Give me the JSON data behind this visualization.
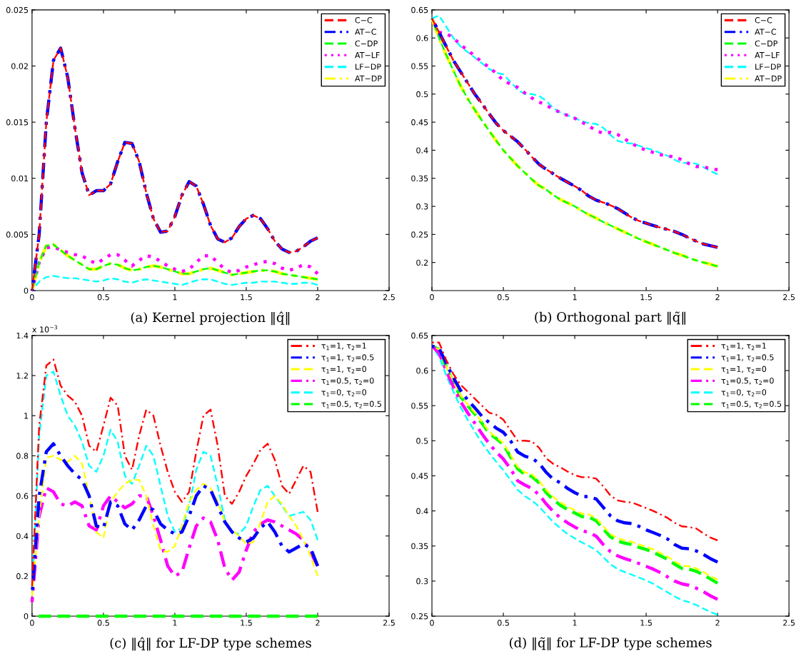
{
  "chart_data": [
    {
      "type": "line",
      "xlabel": "(a) Kernel projection ‖q̂‖",
      "xlim": [
        0,
        2.5
      ],
      "xticks": [
        0,
        0.5,
        1,
        1.5,
        2,
        2.5
      ],
      "ylim": [
        0,
        0.025
      ],
      "yticks": [
        0,
        0.005,
        0.01,
        0.015,
        0.02,
        0.025
      ],
      "legend": "top right",
      "grid": false,
      "x": [
        0,
        0.05,
        0.1,
        0.15,
        0.2,
        0.25,
        0.3,
        0.35,
        0.4,
        0.45,
        0.5,
        0.55,
        0.6,
        0.65,
        0.7,
        0.75,
        0.8,
        0.85,
        0.9,
        0.95,
        1.0,
        1.05,
        1.1,
        1.15,
        1.2,
        1.25,
        1.3,
        1.35,
        1.4,
        1.45,
        1.5,
        1.55,
        1.6,
        1.65,
        1.7,
        1.75,
        1.8,
        1.85,
        1.9,
        1.95,
        2.0
      ],
      "series": [
        {
          "name": "C−C",
          "color": "#ff0000",
          "line_style": "dashed",
          "values": [
            0,
            0.005,
            0.015,
            0.0205,
            0.0216,
            0.019,
            0.0145,
            0.0105,
            0.0085,
            0.0089,
            0.0089,
            0.0095,
            0.0115,
            0.0132,
            0.0131,
            0.0115,
            0.0087,
            0.0064,
            0.0052,
            0.0053,
            0.0066,
            0.0085,
            0.0097,
            0.0093,
            0.0077,
            0.0058,
            0.0046,
            0.0043,
            0.0047,
            0.0057,
            0.0064,
            0.0067,
            0.0064,
            0.0055,
            0.0044,
            0.0037,
            0.0034,
            0.0035,
            0.0039,
            0.0044,
            0.0047
          ]
        },
        {
          "name": "AT−C",
          "color": "#0000ff",
          "line_style": "dashdot",
          "values": [
            0,
            0.005,
            0.015,
            0.0205,
            0.0216,
            0.019,
            0.0145,
            0.0105,
            0.0085,
            0.0089,
            0.0089,
            0.0095,
            0.0115,
            0.0132,
            0.0131,
            0.0115,
            0.0087,
            0.0064,
            0.0052,
            0.0053,
            0.0066,
            0.0085,
            0.0097,
            0.0093,
            0.0077,
            0.0058,
            0.0046,
            0.0043,
            0.0047,
            0.0057,
            0.0064,
            0.0067,
            0.0064,
            0.0055,
            0.0044,
            0.0037,
            0.0034,
            0.0035,
            0.0039,
            0.0044,
            0.0047
          ]
        },
        {
          "name": "C−DP",
          "color": "#00ff00",
          "line_style": "dashed",
          "values": [
            0,
            0.0025,
            0.004,
            0.0041,
            0.0036,
            0.0031,
            0.0027,
            0.0023,
            0.0019,
            0.0019,
            0.0022,
            0.0024,
            0.0023,
            0.002,
            0.0018,
            0.0019,
            0.0021,
            0.0022,
            0.0021,
            0.0019,
            0.0017,
            0.0015,
            0.0015,
            0.0017,
            0.0019,
            0.002,
            0.0018,
            0.0016,
            0.0014,
            0.0015,
            0.0016,
            0.0017,
            0.0018,
            0.0018,
            0.0017,
            0.0015,
            0.0014,
            0.0013,
            0.0012,
            0.0011,
            0.001
          ]
        },
        {
          "name": "AT−LF",
          "color": "#ff00ff",
          "line_style": "dotted",
          "values": [
            0,
            0.0025,
            0.0038,
            0.0039,
            0.0036,
            0.0034,
            0.0032,
            0.0031,
            0.0027,
            0.0024,
            0.0028,
            0.0032,
            0.0032,
            0.0027,
            0.0022,
            0.0027,
            0.0031,
            0.003,
            0.0026,
            0.0022,
            0.0019,
            0.0017,
            0.0019,
            0.0025,
            0.0031,
            0.0031,
            0.0025,
            0.0019,
            0.0016,
            0.0018,
            0.0021,
            0.0023,
            0.0025,
            0.0026,
            0.0024,
            0.002,
            0.0018,
            0.002,
            0.0023,
            0.0021,
            0.0015
          ]
        },
        {
          "name": "LF−DP",
          "color": "#00ffff",
          "line_style": "dashed",
          "values": [
            0,
            0.0008,
            0.0012,
            0.0013,
            0.0012,
            0.0011,
            0.0011,
            0.001,
            0.0009,
            0.0008,
            0.0009,
            0.0011,
            0.001,
            0.0008,
            0.0007,
            0.0009,
            0.001,
            0.0009,
            0.0008,
            0.0007,
            0.0006,
            0.0005,
            0.0007,
            0.0009,
            0.001,
            0.001,
            0.0008,
            0.0006,
            0.0005,
            0.0006,
            0.0007,
            0.0007,
            0.0008,
            0.0008,
            0.0008,
            0.0007,
            0.0006,
            0.0006,
            0.0007,
            0.0007,
            0.0005
          ]
        },
        {
          "name": "AT−DP",
          "color": "#ffff00",
          "line_style": "dashdot",
          "values": [
            0,
            0.0025,
            0.004,
            0.0041,
            0.0036,
            0.0031,
            0.0027,
            0.0023,
            0.0019,
            0.0019,
            0.0022,
            0.0024,
            0.0023,
            0.002,
            0.0018,
            0.0019,
            0.0021,
            0.0022,
            0.0021,
            0.0019,
            0.0017,
            0.0015,
            0.0015,
            0.0017,
            0.0019,
            0.002,
            0.0018,
            0.0016,
            0.0014,
            0.0015,
            0.0016,
            0.0017,
            0.0018,
            0.0018,
            0.0017,
            0.0015,
            0.0014,
            0.0013,
            0.0012,
            0.0011,
            0.001
          ]
        }
      ]
    },
    {
      "type": "line",
      "xlabel": "(b) Orthogonal part ‖q̃‖",
      "xlim": [
        0,
        2.5
      ],
      "xticks": [
        0,
        0.5,
        1,
        1.5,
        2,
        2.5
      ],
      "ylim": [
        0.15,
        0.65
      ],
      "yticks": [
        0.2,
        0.25,
        0.3,
        0.35,
        0.4,
        0.45,
        0.5,
        0.55,
        0.6,
        0.65
      ],
      "legend": "top right",
      "grid": false,
      "x": [
        0,
        0.05,
        0.1,
        0.15,
        0.2,
        0.25,
        0.3,
        0.35,
        0.4,
        0.45,
        0.5,
        0.55,
        0.6,
        0.65,
        0.7,
        0.75,
        0.8,
        0.85,
        0.9,
        0.95,
        1.0,
        1.05,
        1.1,
        1.15,
        1.2,
        1.25,
        1.3,
        1.35,
        1.4,
        1.45,
        1.5,
        1.55,
        1.6,
        1.65,
        1.7,
        1.75,
        1.8,
        1.85,
        1.9,
        1.95,
        2.0
      ],
      "series": [
        {
          "name": "C−C",
          "color": "#ff0000",
          "line_style": "dashed",
          "values": [
            0.635,
            0.61,
            0.585,
            0.56,
            0.54,
            0.52,
            0.5,
            0.483,
            0.465,
            0.448,
            0.435,
            0.425,
            0.415,
            0.402,
            0.388,
            0.375,
            0.366,
            0.358,
            0.35,
            0.343,
            0.336,
            0.328,
            0.318,
            0.311,
            0.307,
            0.302,
            0.296,
            0.288,
            0.28,
            0.274,
            0.27,
            0.266,
            0.262,
            0.259,
            0.255,
            0.25,
            0.244,
            0.238,
            0.233,
            0.23,
            0.227
          ]
        },
        {
          "name": "AT−C",
          "color": "#0000ff",
          "line_style": "dashdot",
          "values": [
            0.635,
            0.61,
            0.585,
            0.56,
            0.54,
            0.52,
            0.5,
            0.483,
            0.465,
            0.448,
            0.435,
            0.425,
            0.415,
            0.402,
            0.388,
            0.375,
            0.366,
            0.358,
            0.35,
            0.343,
            0.336,
            0.328,
            0.318,
            0.311,
            0.307,
            0.302,
            0.296,
            0.288,
            0.28,
            0.274,
            0.27,
            0.266,
            0.262,
            0.259,
            0.255,
            0.25,
            0.244,
            0.238,
            0.233,
            0.23,
            0.227
          ]
        },
        {
          "name": "C−DP",
          "color": "#00ff00",
          "line_style": "dashed",
          "values": [
            0.635,
            0.6,
            0.57,
            0.542,
            0.515,
            0.492,
            0.472,
            0.453,
            0.435,
            0.417,
            0.4,
            0.386,
            0.372,
            0.36,
            0.348,
            0.337,
            0.33,
            0.32,
            0.312,
            0.306,
            0.3,
            0.292,
            0.285,
            0.279,
            0.272,
            0.266,
            0.26,
            0.254,
            0.248,
            0.242,
            0.237,
            0.232,
            0.227,
            0.222,
            0.217,
            0.213,
            0.208,
            0.204,
            0.2,
            0.197,
            0.193
          ]
        },
        {
          "name": "AT−LF",
          "color": "#ff00ff",
          "line_style": "dotted",
          "values": [
            0.635,
            0.61,
            0.608,
            0.6,
            0.588,
            0.578,
            0.568,
            0.557,
            0.548,
            0.537,
            0.524,
            0.518,
            0.512,
            0.502,
            0.493,
            0.486,
            0.48,
            0.473,
            0.467,
            0.462,
            0.457,
            0.45,
            0.443,
            0.435,
            0.43,
            0.432,
            0.428,
            0.42,
            0.412,
            0.405,
            0.4,
            0.396,
            0.392,
            0.39,
            0.388,
            0.383,
            0.376,
            0.371,
            0.37,
            0.368,
            0.365
          ]
        },
        {
          "name": "LF−DP",
          "color": "#00ffff",
          "line_style": "dashed",
          "values": [
            0.635,
            0.64,
            0.62,
            0.6,
            0.585,
            0.575,
            0.565,
            0.555,
            0.545,
            0.538,
            0.535,
            0.522,
            0.508,
            0.5,
            0.5,
            0.497,
            0.488,
            0.475,
            0.467,
            0.462,
            0.457,
            0.452,
            0.448,
            0.447,
            0.44,
            0.427,
            0.417,
            0.413,
            0.412,
            0.408,
            0.404,
            0.4,
            0.395,
            0.39,
            0.383,
            0.377,
            0.378,
            0.376,
            0.37,
            0.363,
            0.357
          ]
        },
        {
          "name": "AT−DP",
          "color": "#ffff00",
          "line_style": "dashdot",
          "values": [
            0.635,
            0.6,
            0.57,
            0.542,
            0.515,
            0.492,
            0.472,
            0.453,
            0.435,
            0.417,
            0.4,
            0.386,
            0.372,
            0.36,
            0.348,
            0.337,
            0.33,
            0.32,
            0.312,
            0.306,
            0.3,
            0.292,
            0.285,
            0.279,
            0.272,
            0.266,
            0.26,
            0.254,
            0.248,
            0.242,
            0.237,
            0.232,
            0.227,
            0.222,
            0.217,
            0.213,
            0.208,
            0.204,
            0.2,
            0.197,
            0.193
          ]
        }
      ]
    },
    {
      "type": "line",
      "xlabel": "(c) ‖q̂‖ for LF-DP type schemes",
      "annotations": [
        "x 10$^{−3}$"
      ],
      "xlim": [
        0,
        2.5
      ],
      "xticks": [
        0,
        0.5,
        1,
        1.5,
        2,
        2.5
      ],
      "ylim": [
        0,
        1.4
      ],
      "yticks": [
        0,
        0.2,
        0.4,
        0.6,
        0.8,
        1,
        1.2,
        1.4
      ],
      "legend": "top right",
      "grid": false,
      "x": [
        0,
        0.05,
        0.1,
        0.15,
        0.2,
        0.25,
        0.3,
        0.35,
        0.4,
        0.45,
        0.5,
        0.55,
        0.6,
        0.65,
        0.7,
        0.75,
        0.8,
        0.85,
        0.9,
        0.95,
        1.0,
        1.05,
        1.1,
        1.15,
        1.2,
        1.25,
        1.3,
        1.35,
        1.4,
        1.45,
        1.5,
        1.55,
        1.6,
        1.65,
        1.7,
        1.75,
        1.8,
        1.85,
        1.9,
        1.95,
        2.0
      ],
      "series": [
        {
          "name": "τ$_{1}$=1, τ$_{2}$=1",
          "color": "#ff0000",
          "line_style": "dashdot",
          "values": [
            0.15,
            0.95,
            1.25,
            1.28,
            1.15,
            1.1,
            1.07,
            1.0,
            0.85,
            0.82,
            0.95,
            1.09,
            1.05,
            0.8,
            0.73,
            0.9,
            1.03,
            1.0,
            0.85,
            0.72,
            0.62,
            0.57,
            0.62,
            0.82,
            1.0,
            1.03,
            0.85,
            0.6,
            0.56,
            0.62,
            0.7,
            0.76,
            0.83,
            0.86,
            0.78,
            0.65,
            0.61,
            0.68,
            0.75,
            0.72,
            0.52
          ]
        },
        {
          "name": "τ$_{1}$=1, τ$_{2}$=0.5",
          "color": "#0000ff",
          "line_style": "dashdot",
          "values": [
            0.1,
            0.6,
            0.82,
            0.86,
            0.8,
            0.75,
            0.71,
            0.68,
            0.6,
            0.45,
            0.44,
            0.57,
            0.55,
            0.46,
            0.43,
            0.48,
            0.55,
            0.53,
            0.46,
            0.43,
            0.41,
            0.42,
            0.5,
            0.6,
            0.65,
            0.63,
            0.55,
            0.47,
            0.42,
            0.39,
            0.37,
            0.39,
            0.44,
            0.47,
            0.42,
            0.35,
            0.32,
            0.34,
            0.36,
            0.34,
            0.25
          ]
        },
        {
          "name": "τ$_{1}$=1, τ$_{2}$=0",
          "color": "#ffff00",
          "line_style": "dashed",
          "values": [
            0.1,
            0.5,
            0.79,
            0.8,
            0.78,
            0.77,
            0.8,
            0.76,
            0.6,
            0.42,
            0.39,
            0.57,
            0.62,
            0.66,
            0.68,
            0.68,
            0.6,
            0.45,
            0.33,
            0.32,
            0.35,
            0.45,
            0.57,
            0.63,
            0.66,
            0.64,
            0.57,
            0.47,
            0.43,
            0.4,
            0.36,
            0.37,
            0.47,
            0.57,
            0.6,
            0.56,
            0.5,
            0.45,
            0.38,
            0.3,
            0.2
          ]
        },
        {
          "name": "τ$_{1}$=0.5, τ$_{2}$=0",
          "color": "#ff00ff",
          "line_style": "dashdot",
          "values": [
            0.07,
            0.5,
            0.64,
            0.62,
            0.56,
            0.55,
            0.57,
            0.55,
            0.45,
            0.43,
            0.55,
            0.6,
            0.57,
            0.54,
            0.56,
            0.6,
            0.6,
            0.5,
            0.38,
            0.25,
            0.2,
            0.22,
            0.34,
            0.45,
            0.49,
            0.47,
            0.38,
            0.24,
            0.18,
            0.22,
            0.33,
            0.42,
            0.46,
            0.48,
            0.47,
            0.45,
            0.43,
            0.41,
            0.38,
            0.32,
            0.25
          ]
        },
        {
          "name": "τ$_{1}$=0, τ$_{2}$=0",
          "color": "#00ffff",
          "line_style": "dashed",
          "values": [
            0.1,
            0.9,
            1.2,
            1.22,
            1.1,
            1.0,
            0.95,
            0.87,
            0.75,
            0.72,
            0.8,
            0.93,
            0.87,
            0.7,
            0.66,
            0.75,
            0.85,
            0.8,
            0.65,
            0.5,
            0.42,
            0.44,
            0.55,
            0.73,
            0.82,
            0.8,
            0.65,
            0.48,
            0.42,
            0.41,
            0.45,
            0.55,
            0.63,
            0.65,
            0.6,
            0.55,
            0.5,
            0.51,
            0.52,
            0.48,
            0.38
          ]
        },
        {
          "name": "τ$_{1}$=0.5, τ$_{2}$=0.5",
          "color": "#00ff00",
          "line_style": "dashed",
          "values": [
            0,
            0,
            0,
            0,
            0,
            0,
            0,
            0,
            0,
            0,
            0,
            0,
            0,
            0,
            0,
            0,
            0,
            0,
            0,
            0,
            0,
            0,
            0,
            0,
            0,
            0,
            0,
            0,
            0,
            0,
            0,
            0,
            0,
            0,
            0,
            0,
            0,
            0,
            0,
            0,
            0
          ]
        }
      ]
    },
    {
      "type": "line",
      "xlabel": "(d) ‖q̃‖ for LF-DP type schemes",
      "xlim": [
        0,
        2.5
      ],
      "xticks": [
        0,
        0.5,
        1,
        1.5,
        2,
        2.5
      ],
      "ylim": [
        0.25,
        0.65
      ],
      "yticks": [
        0.25,
        0.3,
        0.35,
        0.4,
        0.45,
        0.5,
        0.55,
        0.6,
        0.65
      ],
      "legend": "top right",
      "grid": false,
      "x": [
        0,
        0.05,
        0.1,
        0.15,
        0.2,
        0.25,
        0.3,
        0.35,
        0.4,
        0.45,
        0.5,
        0.55,
        0.6,
        0.65,
        0.7,
        0.75,
        0.8,
        0.85,
        0.9,
        0.95,
        1.0,
        1.05,
        1.1,
        1.15,
        1.2,
        1.25,
        1.3,
        1.35,
        1.4,
        1.45,
        1.5,
        1.55,
        1.6,
        1.65,
        1.7,
        1.75,
        1.8,
        1.85,
        1.9,
        1.95,
        2.0
      ],
      "series": [
        {
          "name": "τ$_{1}$=1, τ$_{2}$=1",
          "color": "#ff0000",
          "line_style": "dashdot",
          "values": [
            0.64,
            0.64,
            0.615,
            0.595,
            0.58,
            0.57,
            0.56,
            0.55,
            0.54,
            0.537,
            0.53,
            0.515,
            0.5,
            0.5,
            0.499,
            0.49,
            0.475,
            0.467,
            0.462,
            0.456,
            0.451,
            0.448,
            0.448,
            0.446,
            0.435,
            0.422,
            0.415,
            0.413,
            0.412,
            0.408,
            0.404,
            0.4,
            0.395,
            0.39,
            0.383,
            0.378,
            0.377,
            0.375,
            0.368,
            0.362,
            0.358
          ]
        },
        {
          "name": "τ$_{1}$=1, τ$_{2}$=0.5",
          "color": "#0000ff",
          "line_style": "dashdot",
          "values": [
            0.635,
            0.632,
            0.61,
            0.59,
            0.572,
            0.558,
            0.547,
            0.535,
            0.526,
            0.518,
            0.512,
            0.5,
            0.484,
            0.478,
            0.475,
            0.468,
            0.455,
            0.445,
            0.44,
            0.432,
            0.426,
            0.421,
            0.42,
            0.417,
            0.405,
            0.393,
            0.386,
            0.383,
            0.382,
            0.378,
            0.373,
            0.369,
            0.365,
            0.36,
            0.352,
            0.347,
            0.346,
            0.343,
            0.338,
            0.332,
            0.327
          ]
        },
        {
          "name": "τ$_{1}$=1, τ$_{2}$=0",
          "color": "#ffff00",
          "line_style": "dashed",
          "values": [
            0.635,
            0.63,
            0.605,
            0.585,
            0.565,
            0.552,
            0.54,
            0.527,
            0.513,
            0.505,
            0.497,
            0.48,
            0.463,
            0.455,
            0.452,
            0.443,
            0.43,
            0.42,
            0.412,
            0.406,
            0.401,
            0.396,
            0.395,
            0.39,
            0.378,
            0.367,
            0.361,
            0.358,
            0.356,
            0.352,
            0.349,
            0.345,
            0.34,
            0.335,
            0.328,
            0.322,
            0.321,
            0.318,
            0.313,
            0.307,
            0.302
          ]
        },
        {
          "name": "τ$_{1}$=0.5, τ$_{2}$=0",
          "color": "#ff00ff",
          "line_style": "dashdot",
          "values": [
            0.635,
            0.625,
            0.6,
            0.577,
            0.556,
            0.54,
            0.525,
            0.51,
            0.496,
            0.484,
            0.474,
            0.46,
            0.443,
            0.437,
            0.432,
            0.423,
            0.41,
            0.399,
            0.39,
            0.383,
            0.377,
            0.372,
            0.369,
            0.364,
            0.352,
            0.342,
            0.336,
            0.332,
            0.329,
            0.325,
            0.321,
            0.317,
            0.312,
            0.306,
            0.3,
            0.296,
            0.294,
            0.29,
            0.285,
            0.279,
            0.274
          ]
        },
        {
          "name": "τ$_{1}$=0, τ$_{2}$=0",
          "color": "#00ffff",
          "line_style": "dashed",
          "values": [
            0.635,
            0.62,
            0.593,
            0.57,
            0.548,
            0.53,
            0.513,
            0.497,
            0.483,
            0.47,
            0.458,
            0.444,
            0.43,
            0.421,
            0.415,
            0.406,
            0.395,
            0.384,
            0.375,
            0.367,
            0.361,
            0.355,
            0.35,
            0.344,
            0.334,
            0.324,
            0.317,
            0.313,
            0.309,
            0.305,
            0.301,
            0.296,
            0.29,
            0.284,
            0.278,
            0.273,
            0.27,
            0.266,
            0.261,
            0.256,
            0.252
          ]
        },
        {
          "name": "τ$_{1}$=0.5, τ$_{2}$=0.5",
          "color": "#00ff00",
          "line_style": "dashed",
          "values": [
            0.635,
            0.63,
            0.605,
            0.583,
            0.563,
            0.55,
            0.538,
            0.525,
            0.511,
            0.503,
            0.495,
            0.477,
            0.46,
            0.452,
            0.449,
            0.44,
            0.426,
            0.416,
            0.408,
            0.402,
            0.397,
            0.392,
            0.391,
            0.386,
            0.374,
            0.363,
            0.357,
            0.354,
            0.352,
            0.348,
            0.345,
            0.341,
            0.336,
            0.331,
            0.324,
            0.318,
            0.317,
            0.314,
            0.309,
            0.303,
            0.297
          ]
        }
      ]
    }
  ]
}
